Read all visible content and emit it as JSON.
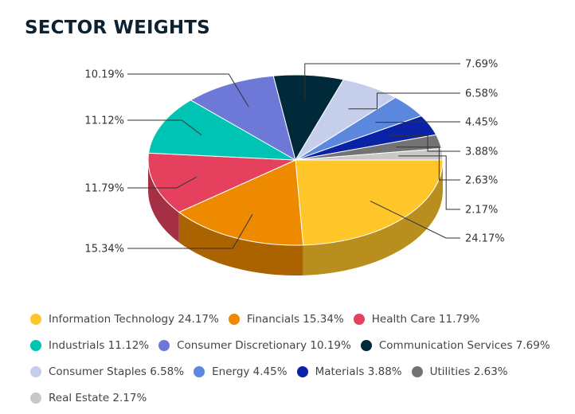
{
  "title": "SECTOR WEIGHTS",
  "chart_data": {
    "type": "pie",
    "title": "SECTOR WEIGHTS",
    "style": "3d",
    "legend_position": "bottom",
    "slices": [
      {
        "name": "Information Technology",
        "value": 24.17,
        "label": "24.17%",
        "legend": "Information Technology 24.17%",
        "color": "#FFC629"
      },
      {
        "name": "Financials",
        "value": 15.34,
        "label": "15.34%",
        "legend": "Financials 15.34%",
        "color": "#EE8A00"
      },
      {
        "name": "Health Care",
        "value": 11.79,
        "label": "11.79%",
        "legend": "Health Care 11.79%",
        "color": "#E5415F"
      },
      {
        "name": "Industrials",
        "value": 11.12,
        "label": "11.12%",
        "legend": "Industrials 11.12%",
        "color": "#00C4B3"
      },
      {
        "name": "Consumer Discretionary",
        "value": 10.19,
        "label": "10.19%",
        "legend": "Consumer Discretionary 10.19%",
        "color": "#6E78D6"
      },
      {
        "name": "Communication Services",
        "value": 7.69,
        "label": "7.69%",
        "legend": "Communication Services 7.69%",
        "color": "#002A3A"
      },
      {
        "name": "Consumer Staples",
        "value": 6.58,
        "label": "6.58%",
        "legend": "Consumer Staples 6.58%",
        "color": "#C5CEEB"
      },
      {
        "name": "Energy",
        "value": 4.45,
        "label": "4.45%",
        "legend": "Energy 4.45%",
        "color": "#5B87DC"
      },
      {
        "name": "Materials",
        "value": 3.88,
        "label": "3.88%",
        "legend": "Materials 3.88%",
        "color": "#0A22A6"
      },
      {
        "name": "Utilities",
        "value": 2.63,
        "label": "2.63%",
        "legend": "Utilities 2.63%",
        "color": "#737373"
      },
      {
        "name": "Real Estate",
        "value": 2.17,
        "label": "2.17%",
        "legend": "Real Estate 2.17%",
        "color": "#C8C8C8"
      }
    ]
  }
}
